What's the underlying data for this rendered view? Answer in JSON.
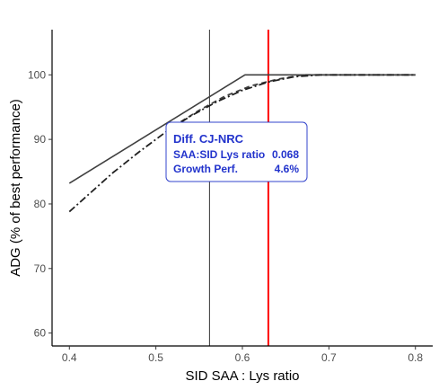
{
  "chart_data": {
    "type": "line",
    "xlabel": "SID SAA : Lys ratio",
    "ylabel": "ADG (% of best performance)",
    "xlim": [
      0.38,
      0.82
    ],
    "ylim": [
      58,
      107
    ],
    "x_ticks": [
      "0.4",
      "0.5",
      "0.6",
      "0.7",
      "0.8"
    ],
    "y_ticks": [
      "60",
      "70",
      "80",
      "90",
      "100"
    ],
    "grid": false,
    "legend": "none",
    "series": [
      {
        "style": "solid",
        "color": "#404040",
        "points": [
          [
            0.4,
            83.2
          ],
          [
            0.603,
            100
          ],
          [
            0.8,
            100
          ]
        ]
      },
      {
        "style": "dashed",
        "color": "#404040",
        "points": [
          [
            0.52,
            92.0
          ],
          [
            0.55,
            94.5
          ],
          [
            0.58,
            96.7
          ],
          [
            0.61,
            98.3
          ],
          [
            0.64,
            99.3
          ],
          [
            0.67,
            100
          ],
          [
            0.8,
            100
          ]
        ]
      },
      {
        "style": "dashdot",
        "color": "#202020",
        "points": [
          [
            0.4,
            78.8
          ],
          [
            0.42,
            81.2
          ],
          [
            0.45,
            84.8
          ],
          [
            0.48,
            88.0
          ],
          [
            0.51,
            91.0
          ],
          [
            0.54,
            93.6
          ],
          [
            0.57,
            95.8
          ],
          [
            0.6,
            97.6
          ],
          [
            0.63,
            98.9
          ],
          [
            0.66,
            99.7
          ],
          [
            0.69,
            100
          ],
          [
            0.8,
            100
          ]
        ]
      }
    ],
    "vlines": [
      {
        "x": 0.562,
        "color": "#333333",
        "width": 1
      },
      {
        "x": 0.63,
        "color": "#ff0000",
        "width": 2
      }
    ],
    "annotation": {
      "title": "Diff. CJ-NRC",
      "rows": [
        {
          "label": "SAA:SID Lys ratio",
          "value": "0.068"
        },
        {
          "label": "Growth Perf.",
          "value": "4.6%"
        }
      ],
      "border_color": "#3344cc",
      "text_color": "#2233cc"
    }
  }
}
